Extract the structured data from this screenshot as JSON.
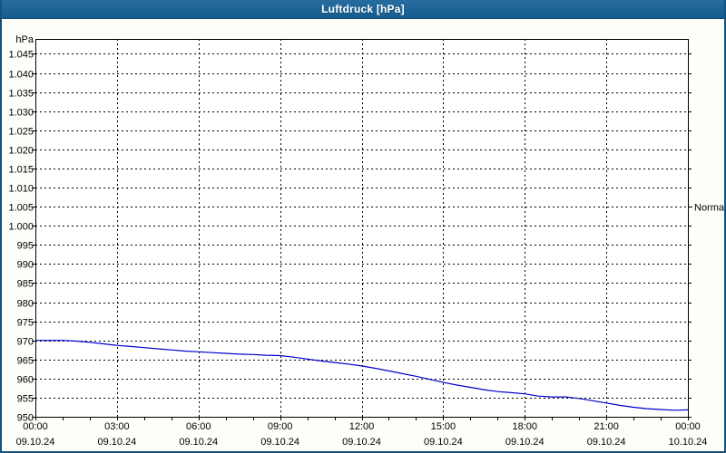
{
  "window": {
    "title": "Luftdruck [hPa]",
    "titlebar_color": "#1D6496",
    "frame_color": "#15517D"
  },
  "chart_data": {
    "type": "line",
    "title": "Luftdruck [hPa]",
    "grid": "dashed",
    "plot_bg": "#FFFFFF",
    "y_axis": {
      "unit_label": "hPa",
      "min": 950,
      "max": 1045,
      "tick_step": 5,
      "tick_values": [
        1045,
        1040,
        1035,
        1030,
        1025,
        1020,
        1015,
        1010,
        1005,
        1000,
        995,
        990,
        985,
        980,
        975,
        970,
        965,
        960,
        955,
        950
      ],
      "tick_labels": [
        "1.045",
        "1.040",
        "1.035",
        "1.030",
        "1.025",
        "1.020",
        "1.015",
        "1.010",
        "1.005",
        "1.000",
        "995",
        "990",
        "985",
        "980",
        "975",
        "970",
        "965",
        "960",
        "955",
        "950"
      ]
    },
    "x_axis": {
      "hours_span": 24,
      "major_tick_every_hours": 3,
      "minor_tick_every_hours": 1,
      "tick_labels": [
        {
          "time": "00:00",
          "date": "09.10.24"
        },
        {
          "time": "03:00",
          "date": "09.10.24"
        },
        {
          "time": "06:00",
          "date": "09.10.24"
        },
        {
          "time": "09:00",
          "date": "09.10.24"
        },
        {
          "time": "12:00",
          "date": "09.10.24"
        },
        {
          "time": "15:00",
          "date": "09.10.24"
        },
        {
          "time": "18:00",
          "date": "09.10.24"
        },
        {
          "time": "21:00",
          "date": "09.10.24"
        },
        {
          "time": "00:00",
          "date": "10.10.24"
        }
      ]
    },
    "normal_marker": {
      "label": "Normal",
      "value": 1005
    },
    "series": [
      {
        "name": "Luftdruck",
        "color": "#0000CC",
        "x_hours": [
          0,
          0.5,
          1,
          1.5,
          2,
          2.5,
          3,
          3.5,
          4,
          4.5,
          5,
          5.5,
          6,
          6.5,
          7,
          7.5,
          8,
          8.5,
          9,
          9.5,
          10,
          10.5,
          11,
          11.5,
          12,
          12.5,
          13,
          13.5,
          14,
          14.5,
          15,
          15.5,
          16,
          16.5,
          17,
          17.5,
          18,
          18.5,
          19,
          19.5,
          20,
          20.5,
          21,
          21.5,
          22,
          22.5,
          23,
          23.5,
          24
        ],
        "values": [
          970.0,
          970.0,
          970.0,
          969.8,
          969.5,
          969.1,
          968.7,
          968.4,
          968.1,
          967.8,
          967.5,
          967.2,
          967.0,
          966.8,
          966.6,
          966.4,
          966.3,
          966.1,
          966.0,
          965.6,
          965.1,
          964.6,
          964.2,
          963.8,
          963.3,
          962.7,
          962.0,
          961.3,
          960.6,
          959.8,
          959.0,
          958.3,
          957.7,
          957.1,
          956.6,
          956.3,
          956.0,
          955.4,
          955.2,
          955.2,
          954.8,
          954.2,
          953.6,
          953.0,
          952.5,
          952.1,
          951.9,
          951.7,
          951.8
        ]
      }
    ]
  }
}
